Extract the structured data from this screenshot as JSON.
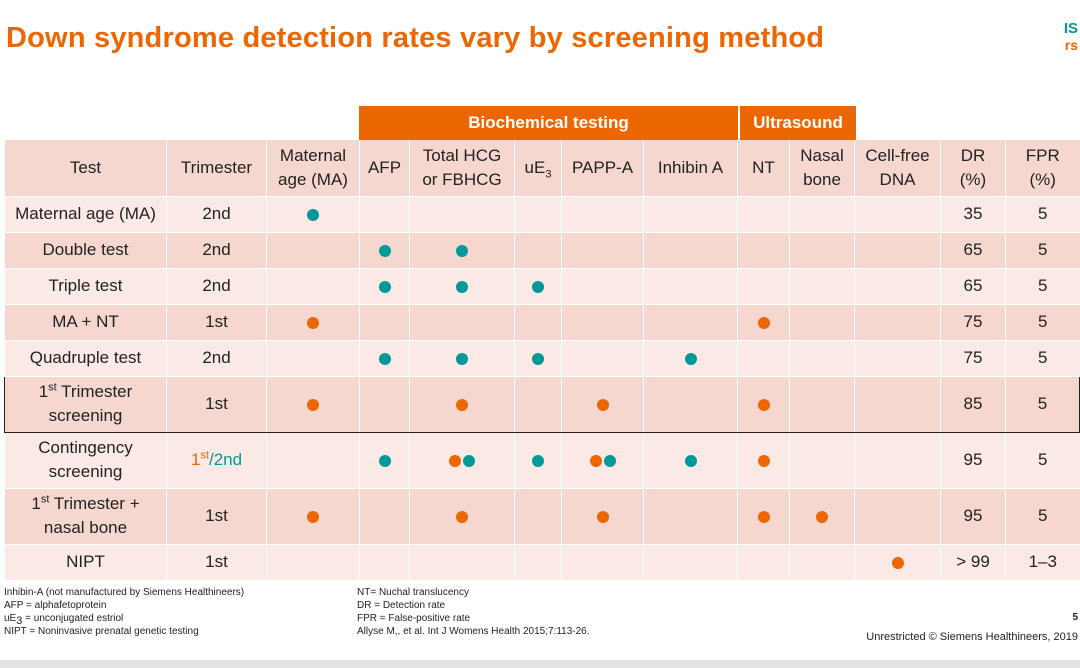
{
  "title": "Down syndrome detection rates vary by screening method",
  "logo": {
    "line1": "IS",
    "line2": "rs"
  },
  "groups": {
    "biochemical": "Biochemical testing",
    "ultrasound": "Ultrasound"
  },
  "headers": {
    "test": "Test",
    "trimester": "Trimester",
    "ma_1": "Maternal",
    "ma_2": "age (MA)",
    "afp": "AFP",
    "hcg_1": "Total HCG",
    "hcg_2": "or FBHCG",
    "ue3": "uE",
    "ue3_sub": "3",
    "pappa": "PAPP-A",
    "inhibin": "Inhibin A",
    "nt": "NT",
    "nasal_1": "Nasal",
    "nasal_2": "bone",
    "cfdna_1": "Cell-free",
    "cfdna_2": "DNA",
    "dr_1": "DR",
    "dr_2": "(%)",
    "fpr_1": "FPR",
    "fpr_2": "(%)"
  },
  "rows": [
    {
      "test": "Maternal age (MA)",
      "trimester": "2nd",
      "dr": "35",
      "fpr": "5"
    },
    {
      "test": "Double test",
      "trimester": "2nd",
      "dr": "65",
      "fpr": "5"
    },
    {
      "test": "Triple test",
      "trimester": "2nd",
      "dr": "65",
      "fpr": "5"
    },
    {
      "test": "MA + NT",
      "trimester": "1st",
      "dr": "75",
      "fpr": "5"
    },
    {
      "test": "Quadruple test",
      "trimester": "2nd",
      "dr": "75",
      "fpr": "5"
    },
    {
      "test_num": "1",
      "test_sup": "st",
      "test_a": " Trimester",
      "test_b": "screening",
      "trimester": "1st",
      "dr": "85",
      "fpr": "5"
    },
    {
      "test_a": "Contingency",
      "test_b": "screening",
      "trimester_1": "1",
      "trimester_sup": "st",
      "trimester_2": "/2nd",
      "dr": "95",
      "fpr": "5"
    },
    {
      "test_num": "1",
      "test_sup": "st",
      "test_a": " Trimester +",
      "test_b": "nasal bone",
      "trimester": "1st",
      "dr": "95",
      "fpr": "5"
    },
    {
      "test": "NIPT",
      "trimester": "1st",
      "dr": "> 99",
      "fpr": "1–3"
    }
  ],
  "footnotes_left": {
    "l1": "Inhibin-A  (not manufactured by Siemens Healthineers)",
    "l2": "AFP = alphafetoprotein",
    "l3_a": "uE",
    "l3_sub": "3",
    "l3_b": " = unconjugated estriol",
    "l4": "NIPT = Noninvasive prenatal genetic testing"
  },
  "footnotes_right": {
    "l1": "NT= Nuchal translucency",
    "l2": "DR = Detection rate",
    "l3": "FPR = False-positive rate",
    "l4": "Allyse M,, et al. Int J Womens Health 2015;7:113-26."
  },
  "page_number": "5",
  "copyright": "Unrestricted © Siemens Healthineers, 2019",
  "colors": {
    "orange": "#ec6602",
    "teal": "#009999",
    "row_light": "#fbe9e5",
    "row_dark": "#f5d7cf"
  }
}
